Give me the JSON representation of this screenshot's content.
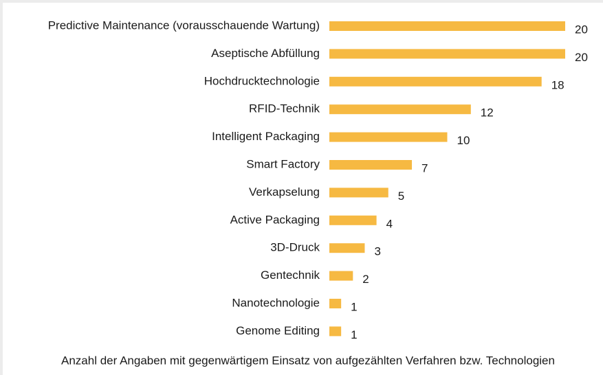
{
  "chart_data": {
    "type": "bar",
    "orientation": "horizontal",
    "categories": [
      "Predictive Maintenance (vorausschauende Wartung)",
      "Aseptische Abfüllung",
      "Hochdrucktechnologie",
      "RFID-Technik",
      "Intelligent Packaging",
      "Smart Factory",
      "Verkapselung",
      "Active Packaging",
      "3D-Druck",
      "Gentechnik",
      "Nanotechnologie",
      "Genome Editing"
    ],
    "values": [
      20,
      20,
      18,
      12,
      10,
      7,
      5,
      4,
      3,
      2,
      1,
      1
    ],
    "color": "#f6b942",
    "caption": "Anzahl der Angaben mit gegenwärtigem Einsatz von aufgezählten Verfahren bzw. Technologien"
  }
}
